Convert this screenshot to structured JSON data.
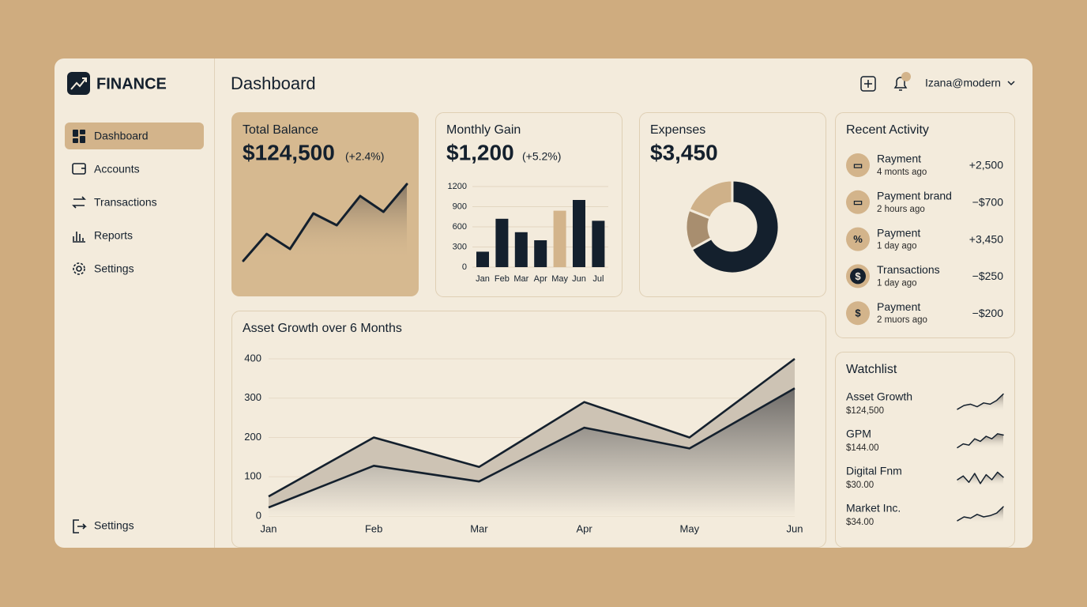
{
  "brand": "FINANCE",
  "nav": {
    "items": [
      "Dashboard",
      "Accounts",
      "Transactions",
      "Reports",
      "Settings"
    ],
    "footer": "Settings"
  },
  "header": {
    "title": "Dashboard",
    "user": "Izana@modern"
  },
  "total_balance": {
    "title": "Total Balance",
    "amount": "$124,500",
    "change": "(+2.4%)",
    "chart_data": {
      "type": "area",
      "values": [
        0,
        34,
        15,
        60,
        45,
        82,
        62,
        97
      ],
      "color": "#14202d"
    }
  },
  "monthly_gain": {
    "title": "Monthly Gain",
    "amount": "$1,200",
    "change": "(+5.2%)",
    "chart_data": {
      "type": "bar",
      "categories": [
        "Jan",
        "Feb",
        "Mar",
        "Apr",
        "May",
        "Jun",
        "Jul"
      ],
      "values": [
        230,
        720,
        520,
        400,
        840,
        1000,
        690
      ],
      "colors": [
        "#14202d",
        "#14202d",
        "#14202d",
        "#14202d",
        "#d3b48b",
        "#14202d",
        "#14202d"
      ],
      "ylim": [
        0,
        1200
      ],
      "yticks": [
        0,
        300,
        600,
        900,
        1200
      ],
      "grid": true
    }
  },
  "expenses": {
    "title": "Expenses",
    "amount": "$3,450",
    "chart_data": {
      "type": "donut",
      "values": [
        67,
        14,
        19
      ],
      "colors": [
        "#14202d",
        "#a88e6f",
        "#cfb189"
      ]
    }
  },
  "asset_growth": {
    "chart_data": {
      "type": "line",
      "title": "Asset Growth over 6 Months",
      "categories": [
        "Jan",
        "Feb",
        "Mar",
        "Apr",
        "May",
        "Jun"
      ],
      "series": [
        {
          "color": "#14202d",
          "values": [
            50,
            200,
            125,
            290,
            200,
            400
          ]
        },
        {
          "color": "#14202d",
          "values": [
            22,
            128,
            88,
            225,
            172,
            325
          ]
        }
      ],
      "ylim": [
        0,
        400
      ],
      "yticks": [
        0,
        100,
        200,
        300,
        400
      ],
      "grid": true
    }
  },
  "recent_activity": {
    "title": "Recent Activity",
    "items": [
      {
        "title": "Rayment",
        "time": "4 monts ago",
        "amount": "+2,500"
      },
      {
        "title": "Payment brand",
        "time": "2 hours ago",
        "amount": "−$700"
      },
      {
        "title": "Payment",
        "time": "1 day ago",
        "amount": "+3,450"
      },
      {
        "title": "Transactions",
        "time": "1 day ago",
        "amount": "−$250"
      },
      {
        "title": "Payment",
        "time": "2 muors ago",
        "amount": "−$200"
      }
    ]
  },
  "watchlist": {
    "title": "Watchlist",
    "items": [
      {
        "name": "Asset Growth",
        "price": "$124,500",
        "chart_data": {
          "type": "area",
          "values": [
            2,
            5,
            6,
            4,
            7,
            6,
            9,
            14
          ]
        }
      },
      {
        "name": "GPM",
        "price": "$144.00",
        "chart_data": {
          "type": "area",
          "values": [
            1,
            4,
            3,
            8,
            6,
            10,
            8,
            12,
            11
          ]
        }
      },
      {
        "name": "Digital Fnm",
        "price": "$30.00",
        "chart_data": {
          "type": "area",
          "values": [
            5,
            8,
            3,
            10,
            2,
            9,
            5,
            11,
            7
          ]
        }
      },
      {
        "name": "Market Inc.",
        "price": "$34.00",
        "chart_data": {
          "type": "area",
          "values": [
            2,
            5,
            4,
            7,
            5,
            6,
            8,
            13
          ]
        }
      }
    ]
  }
}
